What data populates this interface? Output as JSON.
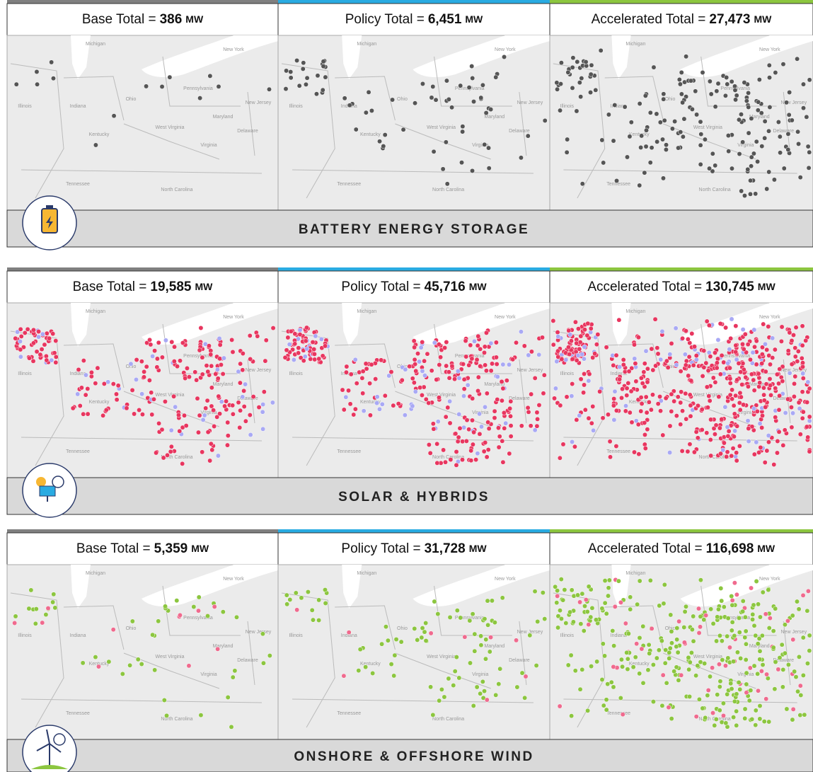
{
  "sections": [
    {
      "title": "BATTERY ENERGY STORAGE",
      "panels": [
        {
          "label": "Base Total =",
          "value": "386",
          "unit": "MW"
        },
        {
          "label": "Policy Total =",
          "value": "6,451",
          "unit": "MW"
        },
        {
          "label": "Accelerated Total =",
          "value": "27,473",
          "unit": "MW"
        }
      ]
    },
    {
      "title": "SOLAR & HYBRIDS",
      "panels": [
        {
          "label": "Base Total =",
          "value": "19,585",
          "unit": "MW"
        },
        {
          "label": "Policy Total =",
          "value": "45,716",
          "unit": "MW"
        },
        {
          "label": "Accelerated Total =",
          "value": "130,745",
          "unit": "MW"
        }
      ]
    },
    {
      "title": "ONSHORE & OFFSHORE WIND",
      "panels": [
        {
          "label": "Base Total =",
          "value": "5,359",
          "unit": "MW"
        },
        {
          "label": "Policy Total =",
          "value": "31,728",
          "unit": "MW"
        },
        {
          "label": "Accelerated Total =",
          "value": "116,698",
          "unit": "MW"
        }
      ]
    }
  ],
  "map_labels": [
    "Michigan",
    "New York",
    "Pennsylvania",
    "New Jersey",
    "Ohio",
    "Indiana",
    "Illinois",
    "Maryland",
    "Delaware",
    "West Virginia",
    "Virginia",
    "Kentucky",
    "Tennessee",
    "North Carolina"
  ]
}
